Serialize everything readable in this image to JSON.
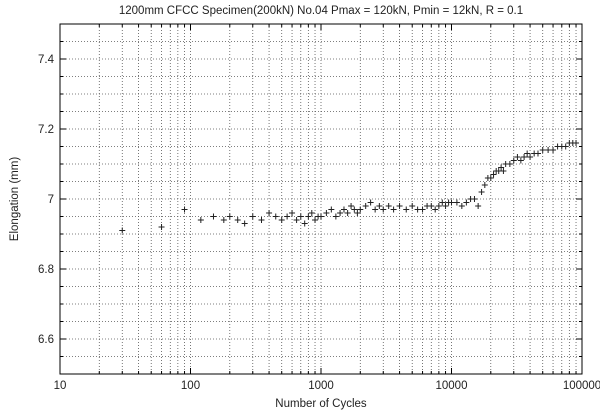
{
  "chart_data": {
    "type": "scatter",
    "title": "1200mm CFCC Specimen(200kN) No.04 Pmax = 120kN, Pmin = 12kN, R = 0.1",
    "xlabel": "Number of Cycles",
    "ylabel": "Elongation (mm)",
    "x_scale": "log",
    "xlim": [
      10,
      100000
    ],
    "ylim": [
      6.5,
      7.5
    ],
    "x_tick_labels": [
      "10",
      "100",
      "1000",
      "10000",
      "100000"
    ],
    "y_tick_labels": [
      "6.6",
      "6.8",
      "7",
      "7.2",
      "7.4"
    ],
    "grid": "dotted (major and minor)",
    "marker": "+",
    "colors": {
      "points": "#222222",
      "grid": "#555555",
      "axes": "#000000"
    },
    "series": [
      {
        "name": "",
        "x": [
          30,
          60,
          90,
          120,
          150,
          180,
          200,
          230,
          260,
          300,
          350,
          400,
          450,
          500,
          550,
          600,
          650,
          700,
          750,
          800,
          850,
          900,
          950,
          1000,
          1100,
          1200,
          1300,
          1400,
          1500,
          1600,
          1700,
          1800,
          1900,
          2000,
          2200,
          2400,
          2600,
          2800,
          3000,
          3300,
          3600,
          4000,
          4500,
          5000,
          5500,
          6000,
          6500,
          7000,
          7500,
          8000,
          8500,
          9000,
          9500,
          10000,
          11000,
          12000,
          13000,
          14000,
          15000,
          16000,
          17000,
          18000,
          19000,
          20000,
          21000,
          22000,
          23000,
          24000,
          25000,
          26000,
          28000,
          30000,
          32000,
          34000,
          36000,
          38000,
          40000,
          43000,
          46000,
          50000,
          55000,
          60000,
          65000,
          70000,
          75000,
          80000,
          85000,
          90000
        ],
        "y": [
          6.91,
          6.92,
          6.97,
          6.94,
          6.95,
          6.94,
          6.95,
          6.94,
          6.93,
          6.95,
          6.94,
          6.96,
          6.95,
          6.94,
          6.95,
          6.96,
          6.94,
          6.95,
          6.93,
          6.95,
          6.96,
          6.94,
          6.95,
          6.95,
          6.96,
          6.97,
          6.95,
          6.96,
          6.97,
          6.96,
          6.98,
          6.97,
          6.96,
          6.97,
          6.98,
          6.99,
          6.97,
          6.98,
          6.97,
          6.98,
          6.97,
          6.98,
          6.97,
          6.98,
          6.97,
          6.97,
          6.98,
          6.98,
          6.97,
          6.98,
          6.99,
          6.98,
          6.99,
          6.99,
          6.99,
          6.98,
          6.99,
          7.0,
          7.0,
          6.98,
          7.02,
          7.04,
          7.06,
          7.06,
          7.07,
          7.08,
          7.08,
          7.09,
          7.08,
          7.1,
          7.1,
          7.11,
          7.12,
          7.11,
          7.12,
          7.13,
          7.12,
          7.13,
          7.13,
          7.14,
          7.14,
          7.14,
          7.15,
          7.15,
          7.15,
          7.16,
          7.16,
          7.16
        ]
      }
    ]
  }
}
